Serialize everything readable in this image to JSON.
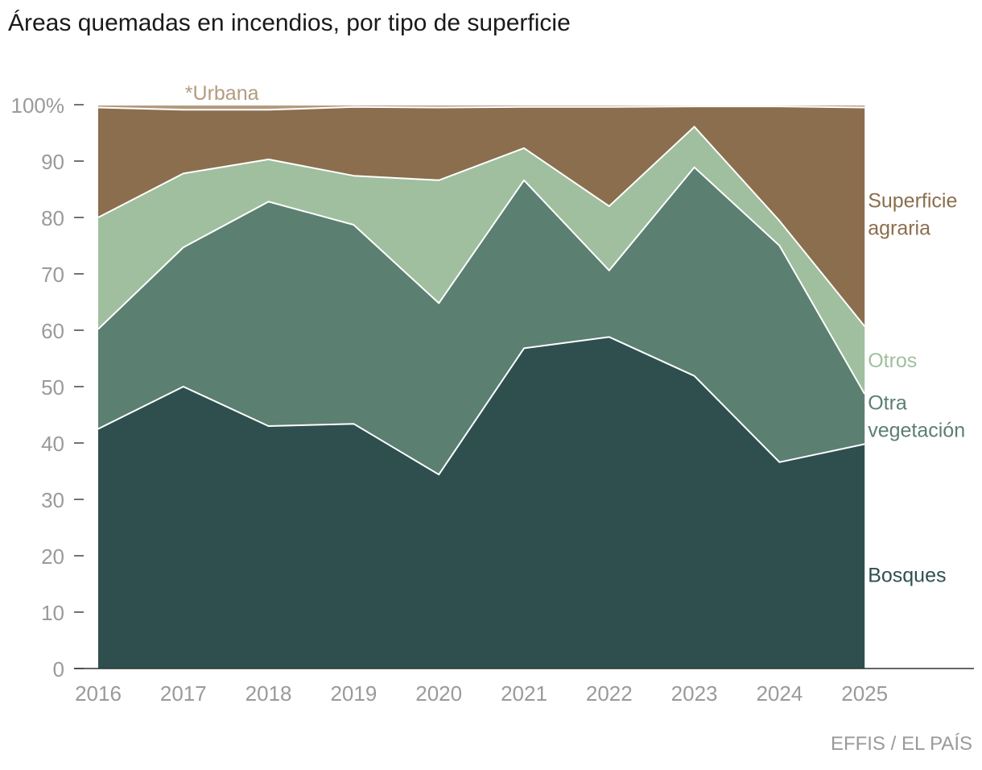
{
  "title": "Áreas quemadas en incendios, por tipo de superficie",
  "source": "EFFIS / EL PAÍS",
  "chart_data": {
    "type": "area",
    "stacked": true,
    "x": [
      "2016",
      "2017",
      "2018",
      "2019",
      "2020",
      "2021",
      "2022",
      "2023",
      "2024",
      "2025"
    ],
    "ylim": [
      0,
      100
    ],
    "yticks": [
      0,
      10,
      20,
      30,
      40,
      50,
      60,
      70,
      80,
      90,
      100
    ],
    "ytick_labels": [
      "0",
      "10",
      "20",
      "30",
      "40",
      "50",
      "60",
      "70",
      "80",
      "90",
      "100%"
    ],
    "cumulative_series": [
      {
        "key": "bosques",
        "name": "Bosques",
        "label_lines": [
          "Bosques"
        ],
        "color": "#2f4f4f",
        "label_color": "#2f4f4f",
        "values": [
          42.5,
          50,
          43,
          43.4,
          34.4,
          56.8,
          58.8,
          51.9,
          36.6,
          39.8
        ]
      },
      {
        "key": "otra",
        "name": "Otra vegetación",
        "label_lines": [
          "Otra",
          "vegetación"
        ],
        "color": "#5b7f71",
        "label_color": "#5b7f71",
        "values": [
          60.2,
          74.7,
          82.8,
          78.7,
          64.8,
          86.6,
          70.6,
          88.9,
          75,
          48.7
        ]
      },
      {
        "key": "otros",
        "name": "Otros",
        "label_lines": [
          "Otros"
        ],
        "color": "#9fbf9f",
        "label_color": "#9fbf9f",
        "values": [
          80,
          87.8,
          90.3,
          87.4,
          86.6,
          92.3,
          82,
          96.1,
          79.4,
          60.7
        ]
      },
      {
        "key": "agraria",
        "name": "Superficie agraria",
        "label_lines": [
          "Superficie",
          "agraria"
        ],
        "color": "#8b6e4e",
        "label_color": "#8b6e4e",
        "values": [
          99.5,
          99.1,
          99.1,
          99.6,
          99.5,
          99.6,
          99.6,
          99.7,
          99.7,
          99.5
        ]
      },
      {
        "key": "urbana",
        "name": "*Urbana",
        "label_lines": [
          "*Urbana"
        ],
        "color": "#b39b80",
        "label_color": "#b39b80",
        "values": [
          100,
          100,
          100,
          100,
          100,
          100,
          100,
          100,
          100,
          100
        ]
      }
    ]
  }
}
